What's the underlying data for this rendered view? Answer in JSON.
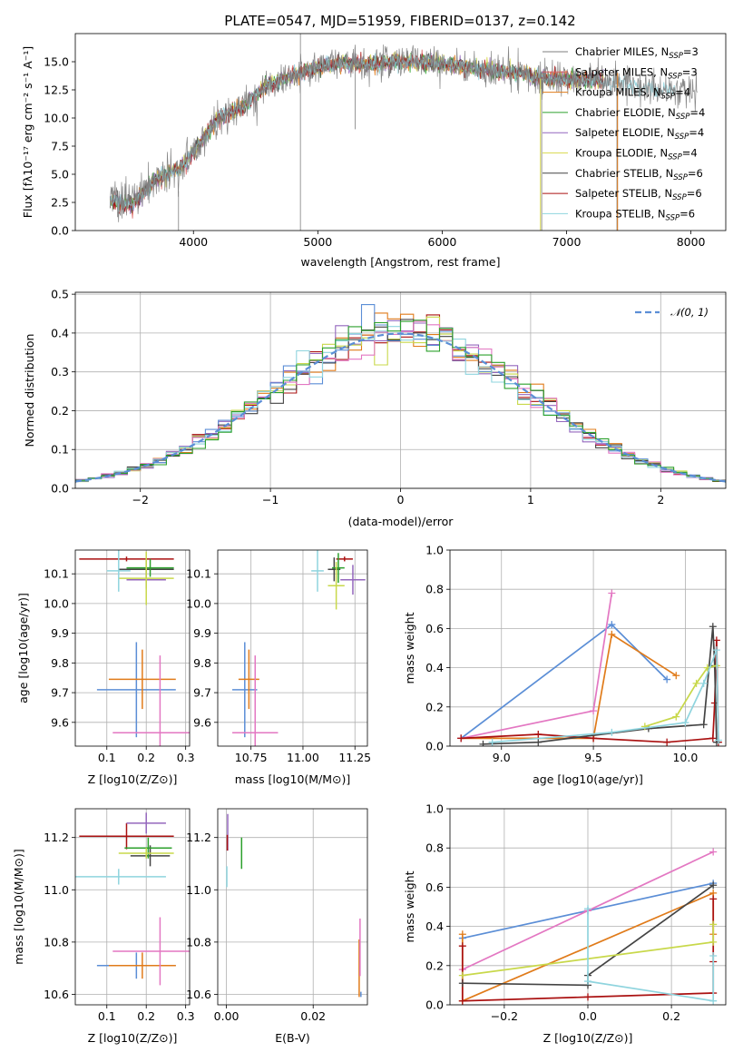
{
  "figure": {
    "title": "PLATE=0547, MJD=51959, FIBERID=0137, z=0.142"
  },
  "palette": [
    "#7f7f7f",
    "#4f4f4f",
    "#d62728",
    "#ff7f0e",
    "#2ca02c",
    "#9467bd",
    "#bcbd22",
    "#8c564b",
    "#17becf",
    "#5b8ed6",
    "#e377c2",
    "#b5d66a",
    "#aa1111",
    "#e06d1a",
    "#8fd4de"
  ],
  "chart_data": [
    {
      "id": "spectrum",
      "type": "line",
      "xlabel": "wavelength [Angstrom, rest frame]",
      "ylabel": "Flux [fλ10⁻¹⁷ erg cm⁻² s⁻¹ A⁻¹]",
      "xlim": [
        3050,
        8280
      ],
      "ylim": [
        0,
        17.5
      ],
      "xticks": [
        4000,
        5000,
        6000,
        7000,
        8000
      ],
      "yticks": [
        0.0,
        2.5,
        5.0,
        7.5,
        10.0,
        12.5,
        15.0
      ],
      "continuum_x": [
        3330,
        3500,
        3700,
        3900,
        4000,
        4200,
        4400,
        4600,
        4800,
        5000,
        5200,
        5400,
        5600,
        5800,
        6000,
        6200,
        6400,
        6600,
        6800,
        7000,
        7200,
        7400,
        7600,
        7800,
        8050
      ],
      "continuum_y": [
        2.7,
        2.3,
        4.5,
        5.6,
        7.0,
        10.0,
        11.0,
        13.0,
        13.8,
        14.5,
        14.9,
        14.8,
        15.0,
        15.0,
        14.8,
        14.5,
        14.2,
        14.0,
        13.6,
        13.4,
        13.3,
        13.3,
        12.6,
        12.4,
        12.4
      ],
      "legend": [
        {
          "label": "Chabrier MILES, N",
          "sub": "SSP",
          "tail": "=3",
          "color": "#7f7f7f"
        },
        {
          "label": "Salpeter MILES, N",
          "sub": "SSP",
          "tail": "=3",
          "color": "#d95f5f"
        },
        {
          "label": "Kroupa MILES, N",
          "sub": "SSP",
          "tail": "=4",
          "color": "#e07b1a"
        },
        {
          "label": "Chabrier ELODIE, N",
          "sub": "SSP",
          "tail": "=4",
          "color": "#2ca02c"
        },
        {
          "label": "Salpeter ELODIE, N",
          "sub": "SSP",
          "tail": "=4",
          "color": "#9467bd"
        },
        {
          "label": "Kroupa ELODIE, N",
          "sub": "SSP",
          "tail": "=4",
          "color": "#dbdb55"
        },
        {
          "label": "Chabrier STELIB, N",
          "sub": "SSP",
          "tail": "=6",
          "color": "#444444"
        },
        {
          "label": "Salpeter STELIB, N",
          "sub": "SSP",
          "tail": "=6",
          "color": "#aa1111"
        },
        {
          "label": "Kroupa STELIB, N",
          "sub": "SSP",
          "tail": "=6",
          "color": "#8fd4de"
        }
      ]
    },
    {
      "id": "residuals",
      "type": "step-histogram",
      "xlabel": "(data-model)/error",
      "ylabel": "Normed distribution",
      "xlim": [
        -2.5,
        2.5
      ],
      "ylim": [
        0,
        0.505
      ],
      "xticks": [
        -2,
        -1,
        0,
        1,
        2
      ],
      "yticks": [
        0.0,
        0.1,
        0.2,
        0.3,
        0.4,
        0.5
      ],
      "grid": true,
      "legend_label": "N(0,1)",
      "legend_placement": "top-right",
      "bin_width": 0.1
    },
    {
      "id": "age_vs_Z",
      "type": "errorbar",
      "xlabel": "Z [log10(Z/Z⊙)]",
      "ylabel": "age  [log10(age/yr)]",
      "xlim": [
        0.02,
        0.31
      ],
      "ylim": [
        9.52,
        10.18
      ],
      "xticks": [
        0.1,
        0.2,
        0.3
      ],
      "yticks": [
        9.6,
        9.7,
        9.8,
        9.9,
        10.0,
        10.1
      ],
      "points": [
        {
          "x": 0.15,
          "xerr": 0.12,
          "y": 10.15,
          "yerr": 0.008,
          "color": "#aa1111"
        },
        {
          "x": 0.2,
          "xerr": 0.05,
          "y": 10.08,
          "yerr": 0.03,
          "color": "#9467bd"
        },
        {
          "x": 0.2,
          "xerr": 0.07,
          "y": 10.115,
          "yerr": 0.03,
          "color": "#444444"
        },
        {
          "x": 0.21,
          "xerr": 0.06,
          "y": 10.12,
          "yerr": 0.03,
          "color": "#2ca02c"
        },
        {
          "x": 0.2,
          "xerr": 0.07,
          "y": 10.085,
          "yerr": 0.09,
          "color": "#c8d84a"
        },
        {
          "x": 0.13,
          "xerr": 0.03,
          "y": 10.11,
          "yerr": 0.07,
          "color": "#8fd4de"
        },
        {
          "x": 0.175,
          "xerr": 0.1,
          "y": 9.71,
          "yerr": 0.16,
          "color": "#5b8ed6"
        },
        {
          "x": 0.19,
          "xerr": 0.085,
          "y": 9.745,
          "yerr": 0.1,
          "color": "#e07b1a"
        },
        {
          "x": 0.235,
          "xerr": 0.12,
          "y": 9.565,
          "yerr": 0.26,
          "color": "#e377c2"
        }
      ]
    },
    {
      "id": "age_vs_mass",
      "type": "errorbar",
      "xlabel": "mass [log10(M/M⊙)]",
      "xlim": [
        10.59,
        11.31
      ],
      "ylim": [
        9.52,
        10.18
      ],
      "xticks": [
        10.75,
        11.0,
        11.25
      ],
      "yticks": [
        9.6,
        9.7,
        9.8,
        9.9,
        10.0,
        10.1
      ],
      "points": [
        {
          "x": 11.2,
          "xerr": 0.04,
          "y": 10.15,
          "yerr": 0.008,
          "color": "#aa1111"
        },
        {
          "x": 11.24,
          "xerr": 0.06,
          "y": 10.08,
          "yerr": 0.05,
          "color": "#9467bd"
        },
        {
          "x": 11.15,
          "xerr": 0.03,
          "y": 10.115,
          "yerr": 0.04,
          "color": "#444444"
        },
        {
          "x": 11.17,
          "xerr": 0.03,
          "y": 10.12,
          "yerr": 0.05,
          "color": "#2ca02c"
        },
        {
          "x": 11.16,
          "xerr": 0.04,
          "y": 10.06,
          "yerr": 0.08,
          "color": "#c8d84a"
        },
        {
          "x": 11.07,
          "xerr": 0.03,
          "y": 10.11,
          "yerr": 0.07,
          "color": "#8fd4de"
        },
        {
          "x": 10.72,
          "xerr": 0.06,
          "y": 9.71,
          "yerr": 0.16,
          "color": "#5b8ed6"
        },
        {
          "x": 10.74,
          "xerr": 0.05,
          "y": 9.745,
          "yerr": 0.1,
          "color": "#e07b1a"
        },
        {
          "x": 10.77,
          "xerr": 0.11,
          "y": 9.565,
          "yerr": 0.26,
          "color": "#e377c2"
        }
      ]
    },
    {
      "id": "massweight_vs_age",
      "type": "line",
      "xlabel": "age  [log10(age/yr)]",
      "ylabel": "mass weight",
      "xlim": [
        8.72,
        10.22
      ],
      "ylim": [
        0,
        1.0
      ],
      "xticks": [
        9.0,
        9.5,
        10.0
      ],
      "yticks": [
        0.0,
        0.2,
        0.4,
        0.6,
        0.8,
        1.0
      ],
      "grid": true,
      "series": [
        {
          "color": "#5b8ed6",
          "x": [
            8.78,
            9.6,
            9.9
          ],
          "y": [
            0.04,
            0.62,
            0.34
          ]
        },
        {
          "color": "#e07b1a",
          "x": [
            8.78,
            9.5,
            9.6,
            9.95
          ],
          "y": [
            0.04,
            0.04,
            0.57,
            0.36
          ]
        },
        {
          "color": "#e377c2",
          "x": [
            8.78,
            9.5,
            9.6
          ],
          "y": [
            0.04,
            0.18,
            0.78
          ]
        },
        {
          "color": "#aa1111",
          "x": [
            8.78,
            9.2,
            9.5,
            9.9,
            10.15,
            10.16,
            10.17,
            10.18
          ],
          "y": [
            0.04,
            0.06,
            0.04,
            0.02,
            0.04,
            0.22,
            0.54,
            0.02
          ]
        },
        {
          "color": "#444444",
          "x": [
            8.9,
            9.2,
            9.8,
            10.1,
            10.15,
            10.16,
            10.17
          ],
          "y": [
            0.01,
            0.02,
            0.09,
            0.11,
            0.61,
            0.41,
            0.02
          ]
        },
        {
          "color": "#c8d84a",
          "x": [
            9.78,
            9.95,
            10.06,
            10.12,
            10.17
          ],
          "y": [
            0.1,
            0.15,
            0.32,
            0.4,
            0.41
          ]
        },
        {
          "color": "#8fd4de",
          "x": [
            8.95,
            9.6,
            10.0,
            10.1,
            10.17,
            10.18
          ],
          "y": [
            0.02,
            0.07,
            0.12,
            0.32,
            0.49,
            0.03
          ]
        }
      ]
    },
    {
      "id": "mass_vs_Z",
      "type": "errorbar",
      "xlabel": "Z [log10(Z/Z⊙)]",
      "ylabel": "mass [log10(M/M⊙)]",
      "xlim": [
        0.02,
        0.31
      ],
      "ylim": [
        10.56,
        11.31
      ],
      "xticks": [
        0.1,
        0.2,
        0.3
      ],
      "yticks": [
        10.6,
        10.8,
        11.0,
        11.2
      ],
      "points": [
        {
          "x": 0.15,
          "xerr": 0.12,
          "y": 11.205,
          "yerr": 0.05,
          "color": "#aa1111"
        },
        {
          "x": 0.2,
          "xerr": 0.05,
          "y": 11.255,
          "yerr": 0.04,
          "color": "#9467bd"
        },
        {
          "x": 0.21,
          "xerr": 0.05,
          "y": 11.13,
          "yerr": 0.04,
          "color": "#444444"
        },
        {
          "x": 0.205,
          "xerr": 0.06,
          "y": 11.16,
          "yerr": 0.04,
          "color": "#2ca02c"
        },
        {
          "x": 0.2,
          "xerr": 0.07,
          "y": 11.14,
          "yerr": 0.02,
          "color": "#c8d84a"
        },
        {
          "x": 0.13,
          "xerr": 0.12,
          "y": 11.05,
          "yerr": 0.03,
          "color": "#8fd4de"
        },
        {
          "x": 0.175,
          "xerr": 0.1,
          "y": 10.71,
          "yerr": 0.05,
          "color": "#5b8ed6"
        },
        {
          "x": 0.19,
          "xerr": 0.085,
          "y": 10.71,
          "yerr": 0.05,
          "color": "#e07b1a"
        },
        {
          "x": 0.235,
          "xerr": 0.12,
          "y": 10.765,
          "yerr": 0.13,
          "color": "#e377c2"
        }
      ]
    },
    {
      "id": "mass_vs_EBV",
      "type": "errorbar",
      "xlabel": "E(B-V)",
      "xlim": [
        -0.002,
        0.0325
      ],
      "ylim": [
        10.56,
        11.31
      ],
      "xticks": [
        0.0,
        0.02
      ],
      "yticks": [
        10.6,
        10.8,
        11.0,
        11.2
      ],
      "points": [
        {
          "x": 0.0003,
          "y": 11.22,
          "yerr": 0.07,
          "color": "#9467bd"
        },
        {
          "x": 0.0002,
          "y": 11.18,
          "yerr": 0.03,
          "color": "#aa1111"
        },
        {
          "x": 0.0035,
          "y": 11.14,
          "yerr": 0.06,
          "color": "#2ca02c"
        },
        {
          "x": 0.0001,
          "y": 11.05,
          "yerr": 0.04,
          "color": "#8fd4de"
        },
        {
          "x": 0.0306,
          "y": 10.7,
          "yerr": 0.11,
          "color": "#e07b1a"
        },
        {
          "x": 0.0308,
          "y": 10.78,
          "yerr": 0.11,
          "color": "#e377c2"
        },
        {
          "x": 0.031,
          "y": 10.6,
          "yerr": 0.01,
          "color": "#5b8ed6"
        }
      ]
    },
    {
      "id": "massweight_vs_Z",
      "type": "line",
      "xlabel": "Z [log10(Z/Z⊙)]",
      "ylabel": "mass weight",
      "xlim": [
        -0.33,
        0.33
      ],
      "ylim": [
        0,
        1.0
      ],
      "xticks": [
        -0.2,
        0.0,
        0.2
      ],
      "yticks": [
        0.0,
        0.2,
        0.4,
        0.6,
        0.8,
        1.0
      ],
      "grid": true,
      "series": [
        {
          "color": "#5b8ed6",
          "x": [
            -0.3,
            0.0,
            0.3
          ],
          "y": [
            0.34,
            0.48,
            0.62
          ]
        },
        {
          "color": "#e07b1a",
          "x": [
            -0.3,
            -0.3,
            0.3,
            0.3
          ],
          "y": [
            0.36,
            0.02,
            0.57,
            0.36
          ]
        },
        {
          "color": "#e377c2",
          "x": [
            -0.3,
            0.0,
            0.3
          ],
          "y": [
            0.18,
            0.48,
            0.78
          ]
        },
        {
          "color": "#aa1111",
          "x": [
            -0.3,
            -0.3,
            0.0,
            0.3,
            0.3,
            0.3
          ],
          "y": [
            0.3,
            0.02,
            0.04,
            0.06,
            0.54,
            0.22
          ]
        },
        {
          "color": "#444444",
          "x": [
            -0.3,
            0.0,
            0.0,
            0.3
          ],
          "y": [
            0.11,
            0.1,
            0.15,
            0.61
          ]
        },
        {
          "color": "#c8d84a",
          "x": [
            -0.3,
            0.3,
            0.3
          ],
          "y": [
            0.15,
            0.32,
            0.41
          ]
        },
        {
          "color": "#8fd4de",
          "x": [
            0.0,
            0.0,
            0.3,
            0.3
          ],
          "y": [
            0.49,
            0.12,
            0.02,
            0.25
          ]
        }
      ]
    }
  ]
}
